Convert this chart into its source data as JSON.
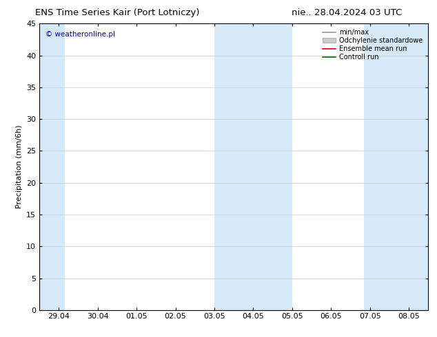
{
  "title_left": "ENS Time Series Kair (Port Lotniczy)",
  "title_right": "nie.. 28.04.2024 03 UTC",
  "ylabel": "Precipitation (mm/6h)",
  "watermark": "© weatheronline.pl",
  "ylim": [
    0,
    45
  ],
  "yticks": [
    0,
    5,
    10,
    15,
    20,
    25,
    30,
    35,
    40,
    45
  ],
  "x_labels": [
    "29.04",
    "30.04",
    "01.05",
    "02.05",
    "03.05",
    "04.05",
    "05.05",
    "06.05",
    "07.05",
    "08.05"
  ],
  "x_values": [
    0,
    1,
    2,
    3,
    4,
    5,
    6,
    7,
    8,
    9
  ],
  "xlim": [
    -0.5,
    9.5
  ],
  "shaded_bands": [
    [
      -0.5,
      0.15
    ],
    [
      4.0,
      5.0
    ],
    [
      5.0,
      6.0
    ],
    [
      7.85,
      9.5
    ]
  ],
  "band_color": "#d6e9f8",
  "background_color": "#ffffff",
  "plot_bg_color": "#ffffff",
  "legend_entries": [
    {
      "label": "min/max",
      "color": "#999999",
      "linewidth": 1.2,
      "linestyle": "-",
      "type": "line"
    },
    {
      "label": "Odchylenie standardowe",
      "color": "#cccccc",
      "linewidth": 1.2,
      "linestyle": "-",
      "type": "band"
    },
    {
      "label": "Ensemble mean run",
      "color": "#dd0000",
      "linewidth": 1.2,
      "linestyle": "-",
      "type": "line"
    },
    {
      "label": "Controll run",
      "color": "#006600",
      "linewidth": 1.2,
      "linestyle": "-",
      "type": "line"
    }
  ],
  "title_fontsize": 9.5,
  "axis_fontsize": 8,
  "tick_fontsize": 8,
  "watermark_color": "#0000cc",
  "grid_color": "#cccccc",
  "grid_linewidth": 0.5,
  "spine_color": "#000000",
  "spine_linewidth": 0.8
}
